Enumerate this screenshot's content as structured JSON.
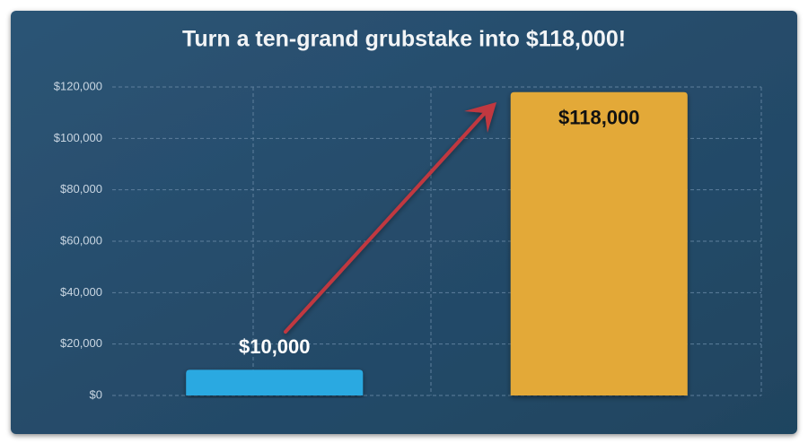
{
  "chart_data": {
    "type": "bar",
    "title": "Turn a ten-grand grubstake into $118,000!",
    "categories": [
      null,
      null
    ],
    "values": [
      10000,
      118000
    ],
    "value_labels": [
      "$10,000",
      "$118,000"
    ],
    "colors": [
      "#29a9e1",
      "#e3a938"
    ],
    "ylim": [
      0,
      120000
    ],
    "yticks": [
      {
        "value": 0,
        "label": "$0"
      },
      {
        "value": 20000,
        "label": "$20,000"
      },
      {
        "value": 40000,
        "label": "$40,000"
      },
      {
        "value": 60000,
        "label": "$60,000"
      },
      {
        "value": 80000,
        "label": "$80,000"
      },
      {
        "value": 100000,
        "label": "$100,000"
      },
      {
        "value": 120000,
        "label": "$120,000"
      }
    ],
    "grid": true
  }
}
